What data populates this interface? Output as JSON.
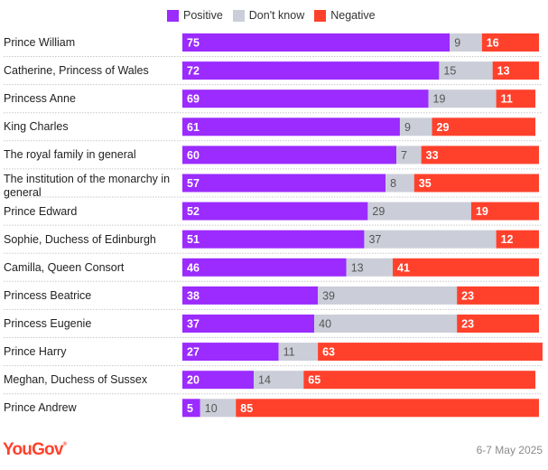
{
  "colors": {
    "positive": "#9b2bff",
    "dont_know": "#cbced8",
    "negative": "#ff412c",
    "label_light": "#ffffff",
    "label_dark": "#555555",
    "separator": "#c8c8c8"
  },
  "legend": [
    {
      "key": "positive",
      "label": "Positive"
    },
    {
      "key": "dont_know",
      "label": "Don't know"
    },
    {
      "key": "negative",
      "label": "Negative"
    }
  ],
  "footer": {
    "logo": "YouGov",
    "date": "6-7 May 2025"
  },
  "chart_data": {
    "type": "bar",
    "orientation": "horizontal",
    "stacked": true,
    "title": "",
    "xlabel": "",
    "ylabel": "",
    "xlim": [
      0,
      100
    ],
    "grid": false,
    "legend_position": "top",
    "categories": [
      "Prince William",
      "Catherine, Princess of Wales",
      "Princess Anne",
      "King Charles",
      "The royal family in general",
      "The institution of the monarchy in general",
      "Prince Edward",
      "Sophie, Duchess of Edinburgh",
      "Camilla, Queen Consort",
      "Princess Beatrice",
      "Princess Eugenie",
      "Prince Harry",
      "Meghan, Duchess of Sussex",
      "Prince Andrew"
    ],
    "series": [
      {
        "name": "Positive",
        "key": "positive",
        "values": [
          75,
          72,
          69,
          61,
          60,
          57,
          52,
          51,
          46,
          38,
          37,
          27,
          20,
          5
        ]
      },
      {
        "name": "Don't know",
        "key": "dont_know",
        "values": [
          9,
          15,
          19,
          9,
          7,
          8,
          29,
          37,
          13,
          39,
          40,
          11,
          14,
          10
        ]
      },
      {
        "name": "Negative",
        "key": "negative",
        "values": [
          16,
          13,
          11,
          29,
          33,
          35,
          19,
          12,
          41,
          23,
          23,
          63,
          65,
          85
        ]
      }
    ]
  }
}
